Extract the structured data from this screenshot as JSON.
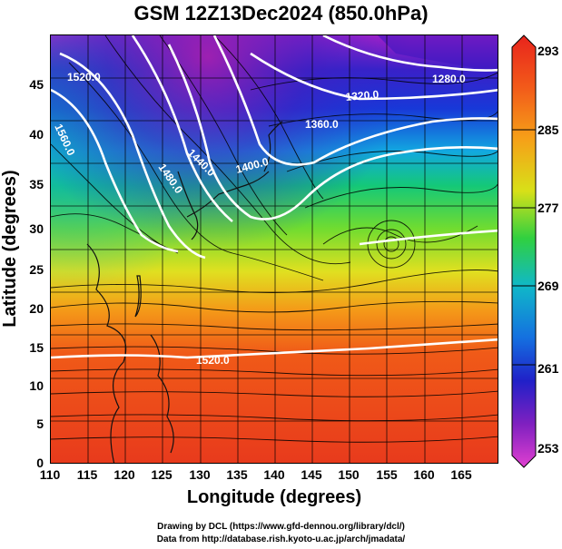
{
  "title": "GSM 12Z13Dec2024 (850.0hPa)",
  "xaxis": {
    "label": "Longitude (degrees)",
    "ticks": [
      "110",
      "115",
      "120",
      "125",
      "130",
      "135",
      "140",
      "145",
      "150",
      "155",
      "160",
      "165"
    ],
    "range": [
      110,
      170
    ]
  },
  "yaxis": {
    "label": "Latitude  (degrees)",
    "ticks": [
      "0",
      "5",
      "10",
      "15",
      "20",
      "25",
      "30",
      "35",
      "40",
      "45"
    ],
    "range": [
      0,
      50
    ]
  },
  "colorbar": {
    "ticks": [
      "293",
      "285",
      "277",
      "269",
      "261",
      "253"
    ],
    "range": [
      253,
      293
    ],
    "colors": [
      "#d43cc8",
      "#2030d0",
      "#10b0e0",
      "#10d060",
      "#c0e020",
      "#f08010",
      "#e02010"
    ]
  },
  "contours": [
    {
      "label": "1520.0"
    },
    {
      "label": "1560.0"
    },
    {
      "label": "1440.0"
    },
    {
      "label": "1480.0"
    },
    {
      "label": "1400.0"
    },
    {
      "label": "1360.0"
    },
    {
      "label": "1320.0"
    },
    {
      "label": "1280.0"
    },
    {
      "label": "1520.0"
    }
  ],
  "credits": {
    "line1": "Drawing by DCL (https://www.gfd-dennou.org/library/dcl/)",
    "line2": "Data from http://database.rish.kyoto-u.ac.jp/arch/jmadata/"
  }
}
